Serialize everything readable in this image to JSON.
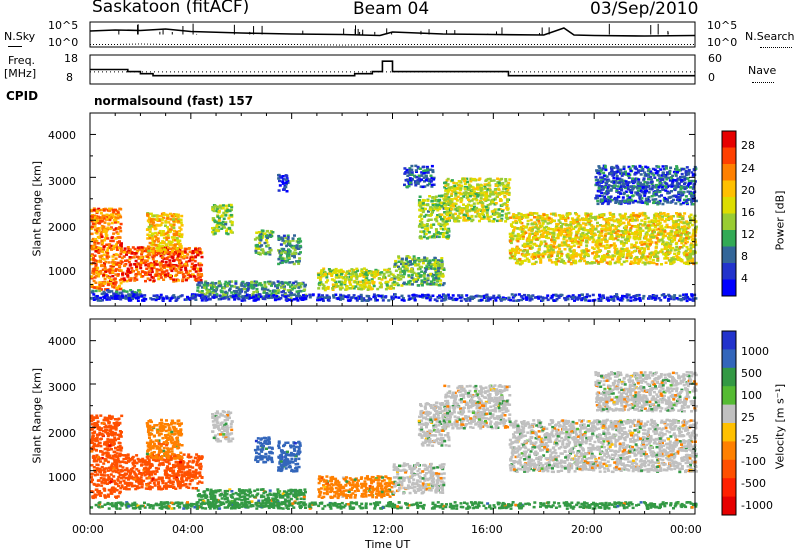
{
  "header": {
    "station": "Saskatoon (fitACF)",
    "beam": "Beam 04",
    "date": "03/Sep/2010"
  },
  "noise_panel": {
    "left_label": "N.Sky",
    "right_label": "N.Search",
    "left_ticks": [
      "10^5",
      "10^0"
    ],
    "right_ticks": [
      "10^5",
      "10^0"
    ]
  },
  "freq_panel": {
    "left_label_line1": "Freq.",
    "left_label_line2": "[MHz]",
    "right_label": "Nave",
    "left_ticks": [
      "18",
      "8"
    ],
    "right_ticks": [
      "60",
      "0"
    ]
  },
  "cpid": {
    "label": "CPID",
    "value": "normalsound (fast) 157"
  },
  "chart_data": [
    {
      "type": "heatmap",
      "quantity": "Power",
      "ylabel": "Slant Range [km]",
      "ylim": [
        0,
        4500
      ],
      "yticks": [
        "4000",
        "3000",
        "2000",
        "1000"
      ],
      "xlim": [
        "00:00",
        "24:00"
      ],
      "colorbar_label": "Power [dB]",
      "colorbar_ticks": [
        "28",
        "24",
        "20",
        "16",
        "12",
        "8",
        "4"
      ],
      "colorbar_colors": [
        "#e60000",
        "#ff4000",
        "#ff8000",
        "#ffc000",
        "#dddd00",
        "#99cc33",
        "#33aa55",
        "#336699",
        "#2233cc",
        "#0000ff"
      ],
      "regions": [
        {
          "t0": 0.0,
          "t1": 1.2,
          "r0": 400,
          "r1": 2300,
          "v": 26
        },
        {
          "t0": 1.2,
          "t1": 4.4,
          "r0": 600,
          "r1": 1400,
          "v": 28
        },
        {
          "t0": 2.2,
          "t1": 3.6,
          "r0": 1300,
          "r1": 2200,
          "v": 22
        },
        {
          "t0": 0.0,
          "t1": 2.0,
          "r0": 200,
          "r1": 400,
          "v": 10
        },
        {
          "t0": 4.2,
          "t1": 8.5,
          "r0": 200,
          "r1": 600,
          "v": 12
        },
        {
          "t0": 4.8,
          "t1": 5.6,
          "r0": 1700,
          "r1": 2400,
          "v": 16
        },
        {
          "t0": 6.5,
          "t1": 7.2,
          "r0": 1200,
          "r1": 1800,
          "v": 14
        },
        {
          "t0": 7.4,
          "t1": 8.3,
          "r0": 1000,
          "r1": 1700,
          "v": 12
        },
        {
          "t0": 7.4,
          "t1": 7.8,
          "r0": 2700,
          "r1": 3100,
          "v": 6
        },
        {
          "t0": 9.0,
          "t1": 12.0,
          "r0": 400,
          "r1": 900,
          "v": 18
        },
        {
          "t0": 12.0,
          "t1": 14.0,
          "r0": 500,
          "r1": 1200,
          "v": 14
        },
        {
          "t0": 13.0,
          "t1": 14.2,
          "r0": 1600,
          "r1": 2600,
          "v": 16
        },
        {
          "t0": 12.4,
          "t1": 13.6,
          "r0": 2800,
          "r1": 3300,
          "v": 8
        },
        {
          "t0": 14.0,
          "t1": 16.6,
          "r0": 2000,
          "r1": 3000,
          "v": 18
        },
        {
          "t0": 16.6,
          "t1": 24.0,
          "r0": 1000,
          "r1": 2200,
          "v": 20
        },
        {
          "t0": 20.0,
          "t1": 24.0,
          "r0": 2400,
          "r1": 3300,
          "v": 8
        },
        {
          "t0": 0.0,
          "t1": 24.0,
          "r0": 150,
          "r1": 300,
          "v": 6
        }
      ]
    },
    {
      "type": "heatmap",
      "quantity": "Velocity",
      "ylabel": "Slant Range [km]",
      "ylim": [
        0,
        4500
      ],
      "yticks": [
        "4000",
        "3000",
        "2000",
        "1000"
      ],
      "xlim": [
        "00:00",
        "24:00"
      ],
      "xticks": [
        "00:00",
        "04:00",
        "08:00",
        "12:00",
        "16:00",
        "20:00",
        "00:00"
      ],
      "xlabel": "Time UT",
      "colorbar_label": "Velocity [m s⁻¹]",
      "colorbar_ticks": [
        "1000",
        "500",
        "100",
        "25",
        "-25",
        "-100",
        "-500",
        "-1000"
      ],
      "colorbar_colors": [
        "#2233cc",
        "#3366bb",
        "#339944",
        "#55bb33",
        "#c0c0c0",
        "#ffc000",
        "#ff8000",
        "#ff5000",
        "#ff2000",
        "#e60000"
      ],
      "regions": [
        {
          "t0": 0.0,
          "t1": 1.2,
          "r0": 400,
          "r1": 2300,
          "v": -500
        },
        {
          "t0": 1.2,
          "t1": 4.4,
          "r0": 600,
          "r1": 1400,
          "v": -500
        },
        {
          "t0": 2.2,
          "t1": 3.6,
          "r0": 1300,
          "r1": 2200,
          "v": -100
        },
        {
          "t0": 4.2,
          "t1": 8.5,
          "r0": 200,
          "r1": 600,
          "v": 100
        },
        {
          "t0": 4.8,
          "t1": 5.6,
          "r0": 1700,
          "r1": 2400,
          "v": 0
        },
        {
          "t0": 6.5,
          "t1": 7.2,
          "r0": 1200,
          "r1": 1800,
          "v": 500
        },
        {
          "t0": 7.4,
          "t1": 8.3,
          "r0": 1000,
          "r1": 1700,
          "v": 500
        },
        {
          "t0": 9.0,
          "t1": 12.0,
          "r0": 400,
          "r1": 900,
          "v": -100
        },
        {
          "t0": 12.0,
          "t1": 14.0,
          "r0": 500,
          "r1": 1200,
          "v": 0
        },
        {
          "t0": 13.0,
          "t1": 14.2,
          "r0": 1600,
          "r1": 2600,
          "v": 0
        },
        {
          "t0": 14.0,
          "t1": 16.6,
          "r0": 2000,
          "r1": 3000,
          "v": 0
        },
        {
          "t0": 16.6,
          "t1": 24.0,
          "r0": 1000,
          "r1": 2200,
          "v": 0
        },
        {
          "t0": 20.0,
          "t1": 24.0,
          "r0": 2400,
          "r1": 3300,
          "v": 0
        },
        {
          "t0": 0.0,
          "t1": 24.0,
          "r0": 150,
          "r1": 300,
          "v": 100
        }
      ]
    }
  ],
  "noise_series": {
    "x_hours": [
      0,
      1,
      2,
      3,
      4,
      6,
      8,
      10,
      11.5,
      12,
      14,
      16,
      18,
      18.8,
      19.2,
      20,
      22,
      24
    ],
    "sky_log": [
      3.2,
      3.4,
      3.3,
      3.6,
      3.1,
      2.8,
      2.6,
      2.5,
      2.3,
      3.0,
      2.6,
      2.5,
      2.4,
      3.8,
      2.4,
      2.3,
      2.2,
      2.3
    ],
    "search_log": [
      0.5,
      0.5,
      0.6,
      0.5,
      0.5,
      0.5,
      0.5,
      0.4,
      0.5,
      0.5,
      0.5,
      0.5,
      0.5,
      0.5,
      0.5,
      0.5,
      0.5,
      0.5
    ]
  },
  "freq_series": {
    "x_hours": [
      0,
      1.5,
      2,
      2.5,
      10.5,
      11.2,
      11.6,
      12.0,
      16.6,
      24
    ],
    "freq_mhz": [
      13,
      12,
      11,
      10,
      11,
      12,
      17,
      12,
      10,
      10
    ],
    "nave": [
      25,
      25,
      25,
      25,
      25,
      25,
      25,
      25,
      25,
      25
    ]
  }
}
